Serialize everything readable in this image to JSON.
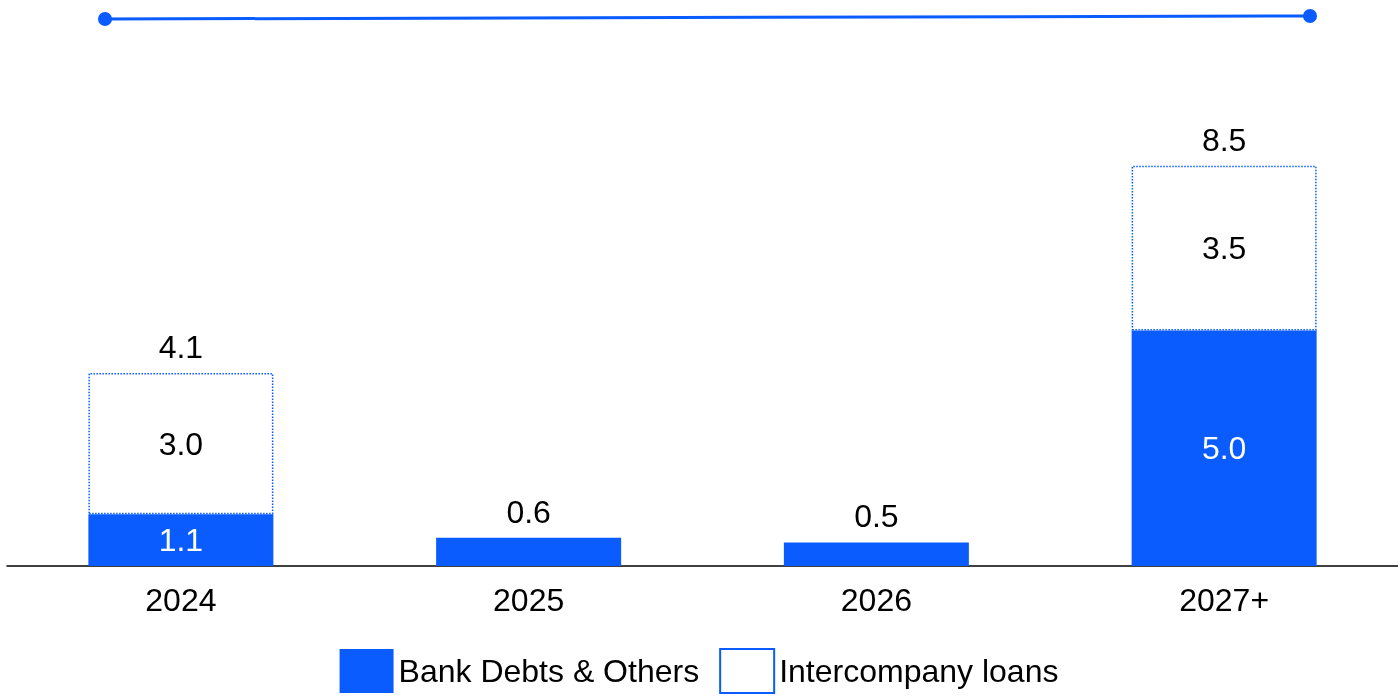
{
  "chart_data": {
    "type": "bar",
    "stacked": true,
    "categories": [
      "2024",
      "2025",
      "2026",
      "2027+"
    ],
    "series": [
      {
        "name": "Bank Debts & Others",
        "color": "#0a5cff",
        "values": [
          1.1,
          0.6,
          0.5,
          5.0
        ],
        "value_labels": [
          "1.1",
          null,
          null,
          "5.0"
        ]
      },
      {
        "name": "Intercompany loans",
        "color": "#ffffff",
        "values": [
          3.0,
          null,
          null,
          3.5
        ],
        "value_labels": [
          "3.0",
          null,
          null,
          "3.5"
        ]
      }
    ],
    "totals": [
      "4.1",
      "0.6",
      "0.5",
      "8.5"
    ],
    "legend": "bottom"
  }
}
